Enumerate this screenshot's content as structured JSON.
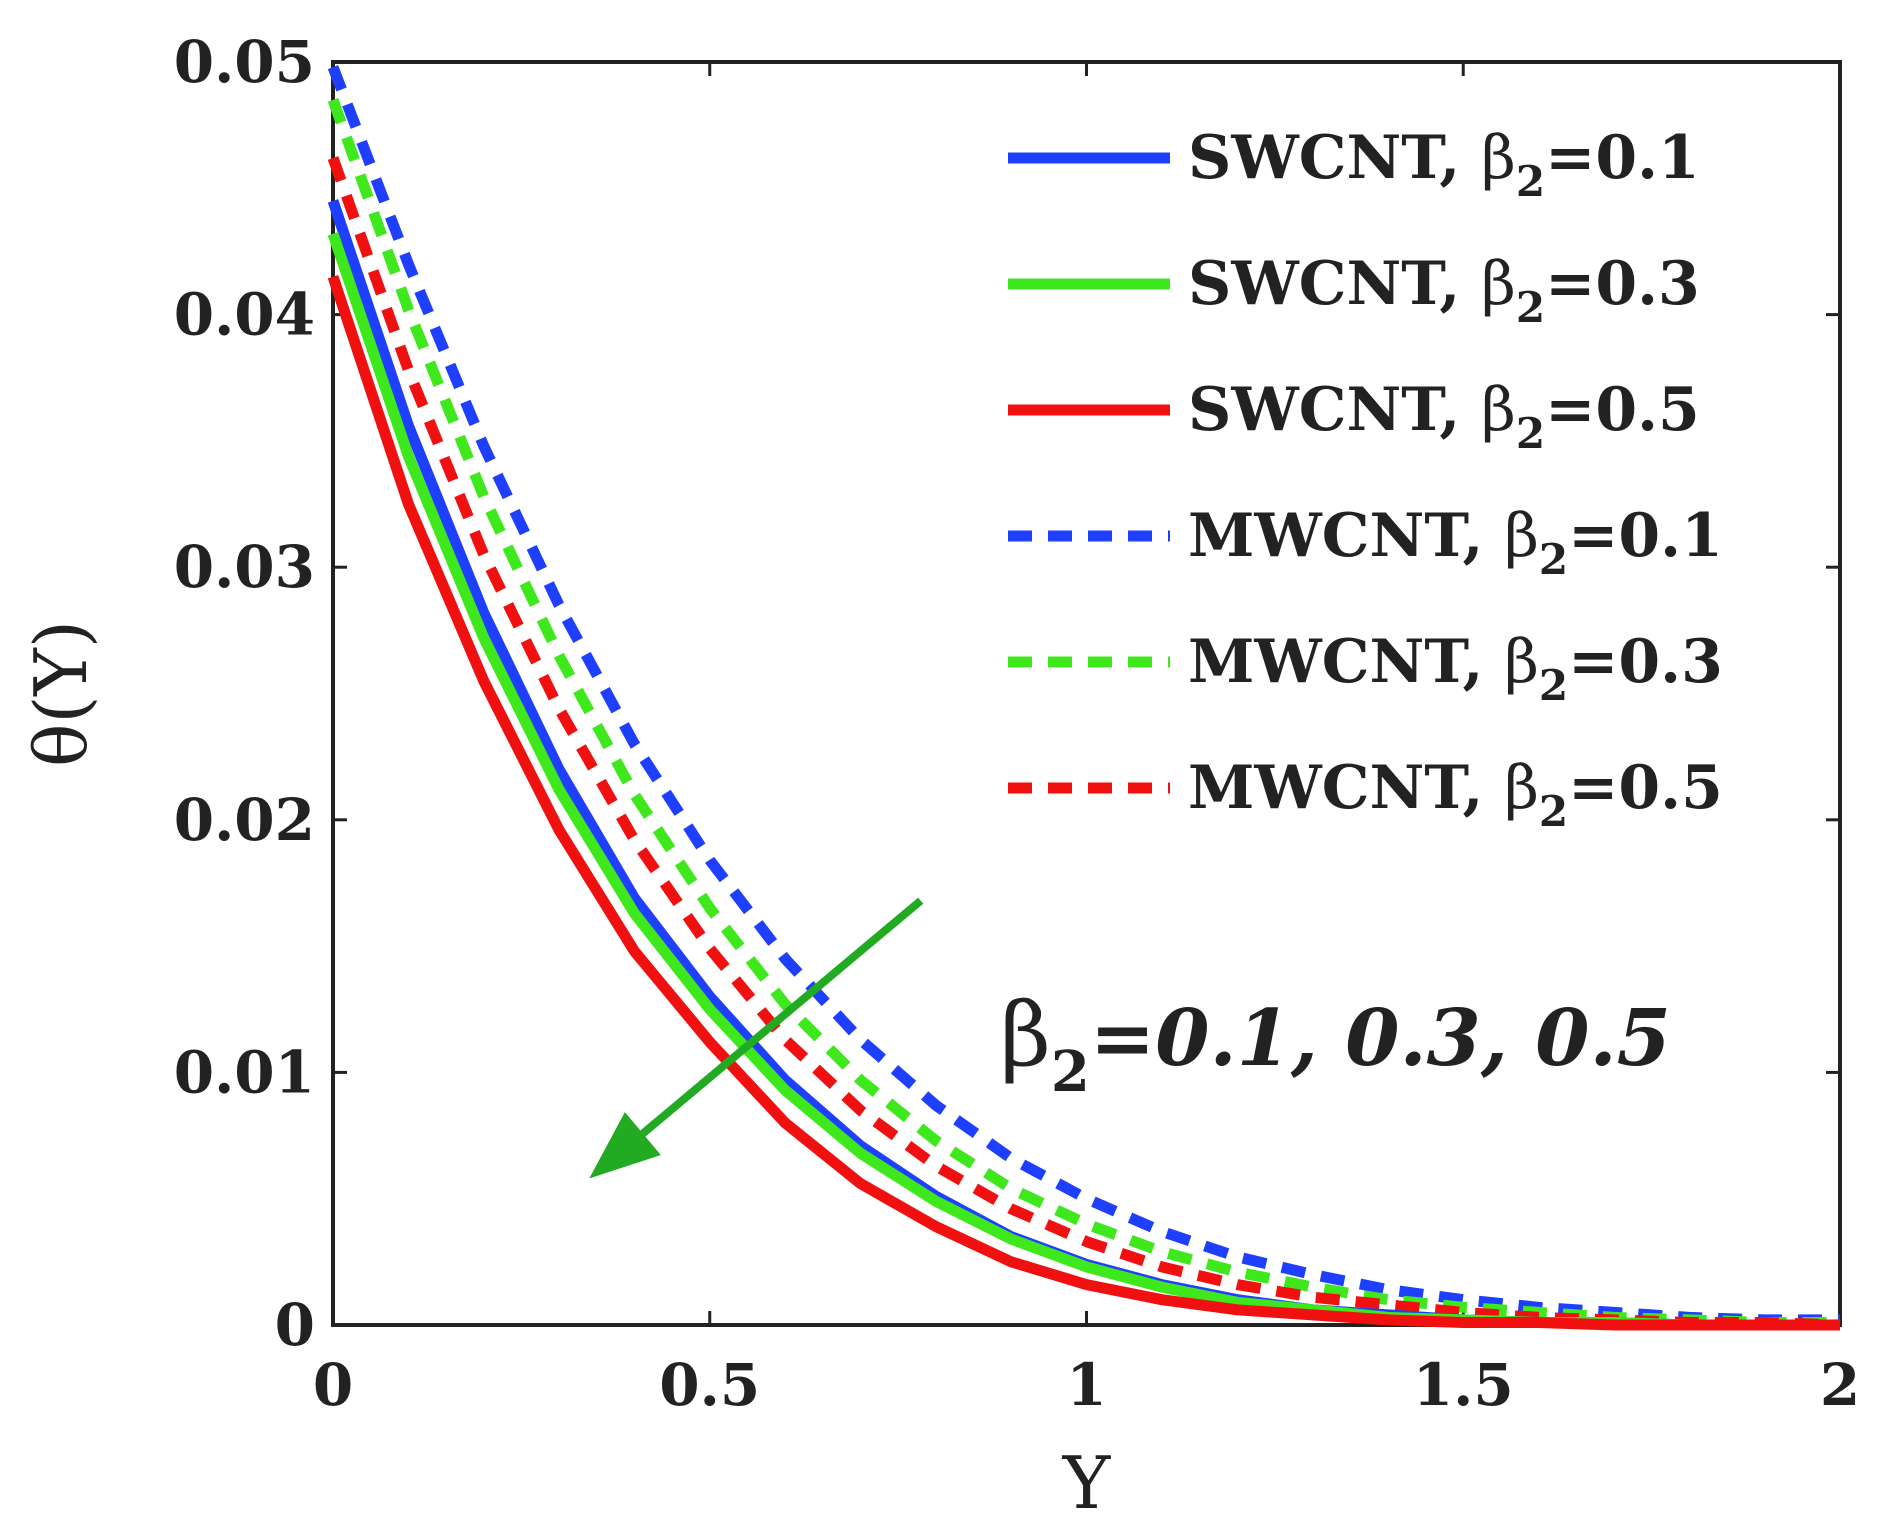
{
  "chart_data": {
    "type": "line",
    "xlabel": "Υ",
    "ylabel": "θ(Υ)",
    "xlim": [
      0,
      2
    ],
    "ylim": [
      0,
      0.05
    ],
    "xticks": [
      0,
      0.5,
      1,
      1.5,
      2
    ],
    "xtick_labels": [
      "0",
      "0.5",
      "1",
      "1.5",
      "2"
    ],
    "yticks": [
      0,
      0.01,
      0.02,
      0.03,
      0.04,
      0.05
    ],
    "ytick_labels": [
      "0",
      "0.01",
      "0.02",
      "0.03",
      "0.04",
      "0.05"
    ],
    "legend_position": "top-right",
    "x": [
      0,
      0.1,
      0.2,
      0.3,
      0.4,
      0.5,
      0.6,
      0.7,
      0.8,
      0.9,
      1.0,
      1.1,
      1.2,
      1.3,
      1.4,
      1.5,
      1.6,
      1.7,
      1.8,
      1.9,
      2.0
    ],
    "series": [
      {
        "name": "SWCNT",
        "beta": "0.1",
        "color": "#1f3fff",
        "style": "solid",
        "values": [
          0.0445,
          0.0356,
          0.0282,
          0.022,
          0.0169,
          0.013,
          0.0097,
          0.0071,
          0.0051,
          0.0035,
          0.0024,
          0.0016,
          0.001,
          0.0006,
          0.0004,
          0.0002,
          0.0001,
          0.0001,
          0.0,
          0.0,
          0.0
        ]
      },
      {
        "name": "SWCNT",
        "beta": "0.3",
        "color": "#3ee81c",
        "style": "solid",
        "values": [
          0.0432,
          0.0344,
          0.0272,
          0.0212,
          0.0163,
          0.0125,
          0.0093,
          0.0068,
          0.0049,
          0.0034,
          0.0023,
          0.0015,
          0.0009,
          0.0006,
          0.0003,
          0.0002,
          0.0001,
          0.0001,
          0.0,
          0.0,
          0.0
        ]
      },
      {
        "name": "SWCNT",
        "beta": "0.5",
        "color": "#f01010",
        "style": "solid",
        "values": [
          0.0415,
          0.0325,
          0.0255,
          0.0196,
          0.0148,
          0.0112,
          0.008,
          0.0056,
          0.0039,
          0.0025,
          0.0016,
          0.001,
          0.0006,
          0.0004,
          0.0002,
          0.0001,
          0.0001,
          0.0,
          0.0,
          0.0,
          0.0
        ]
      },
      {
        "name": "MWCNT",
        "beta": "0.1",
        "color": "#1f3fff",
        "style": "dashed",
        "values": [
          0.0498,
          0.042,
          0.0348,
          0.0285,
          0.023,
          0.0184,
          0.0145,
          0.0113,
          0.0087,
          0.0066,
          0.005,
          0.0037,
          0.0027,
          0.002,
          0.0014,
          0.001,
          0.0007,
          0.0005,
          0.0003,
          0.0002,
          0.0002
        ]
      },
      {
        "name": "MWCNT",
        "beta": "0.3",
        "color": "#3ee81c",
        "style": "dashed",
        "values": [
          0.0485,
          0.0402,
          0.0328,
          0.0265,
          0.021,
          0.0165,
          0.0127,
          0.0097,
          0.0073,
          0.0054,
          0.004,
          0.0029,
          0.0021,
          0.0015,
          0.001,
          0.0007,
          0.0005,
          0.0003,
          0.0002,
          0.0001,
          0.0001
        ]
      },
      {
        "name": "MWCNT",
        "beta": "0.5",
        "color": "#f01010",
        "style": "dashed",
        "values": [
          0.0462,
          0.0378,
          0.0305,
          0.0244,
          0.0192,
          0.0149,
          0.0113,
          0.0085,
          0.0063,
          0.0046,
          0.0033,
          0.0023,
          0.0016,
          0.0011,
          0.0008,
          0.0005,
          0.0003,
          0.0002,
          0.0001,
          0.0001,
          0.0
        ]
      }
    ],
    "legend_entries": [
      {
        "label": "SWCNT, ",
        "sym": "β",
        "sub": "2",
        "rest": "=0.1"
      },
      {
        "label": "SWCNT, ",
        "sym": "β",
        "sub": "2",
        "rest": "=0.3"
      },
      {
        "label": "SWCNT, ",
        "sym": "β",
        "sub": "2",
        "rest": "=0.5"
      },
      {
        "label": "MWCNT, ",
        "sym": "β",
        "sub": "2",
        "rest": "=0.1"
      },
      {
        "label": "MWCNT, ",
        "sym": "β",
        "sub": "2",
        "rest": "=0.3"
      },
      {
        "label": "MWCNT, ",
        "sym": "β",
        "sub": "2",
        "rest": "=0.5"
      }
    ],
    "annotation": {
      "sym": "β",
      "sub": "2",
      "text": "=0.1, 0.3, 0.5",
      "arrow_color": "#22aa22",
      "arrow_from": [
        0.78,
        0.0168
      ],
      "arrow_to": [
        0.34,
        0.0058
      ]
    }
  }
}
